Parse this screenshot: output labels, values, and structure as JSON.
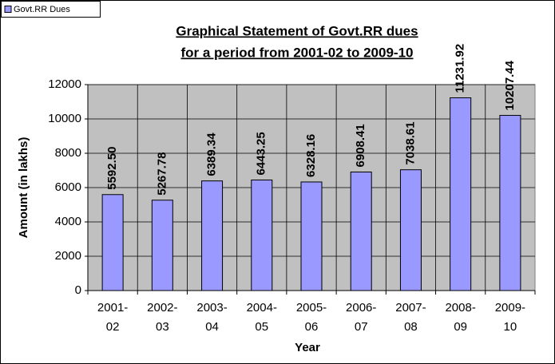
{
  "chart_data": {
    "type": "bar",
    "title": "Graphical Statement of Govt.RR dues",
    "subtitle": "for a period from 2001-02 to 2009-10",
    "x_label": "Year",
    "y_label": "Amount (in lakhs)",
    "categories": [
      "2001-02",
      "2002-03",
      "2003-04",
      "2004-05",
      "2005-06",
      "2006-07",
      "2007-08",
      "2008-09",
      "2009-10"
    ],
    "series": [
      {
        "name": "Govt.RR Dues",
        "color": "#9999ff",
        "values": [
          5592.5,
          5267.78,
          6389.34,
          6443.25,
          6328.16,
          6908.41,
          7038.61,
          11231.92,
          10207.44
        ],
        "value_labels": [
          "5592.50",
          "5267.78",
          "6389.34",
          "6443.25",
          "6328.16",
          "6908.41",
          "7038.61",
          "11231.92",
          "10207.44"
        ]
      }
    ],
    "ylim": [
      0,
      12000
    ],
    "yticks": [
      0,
      2000,
      4000,
      6000,
      8000,
      10000,
      12000
    ],
    "grid": true,
    "legend": "top-left",
    "plot_background": "#c0c0c0"
  }
}
